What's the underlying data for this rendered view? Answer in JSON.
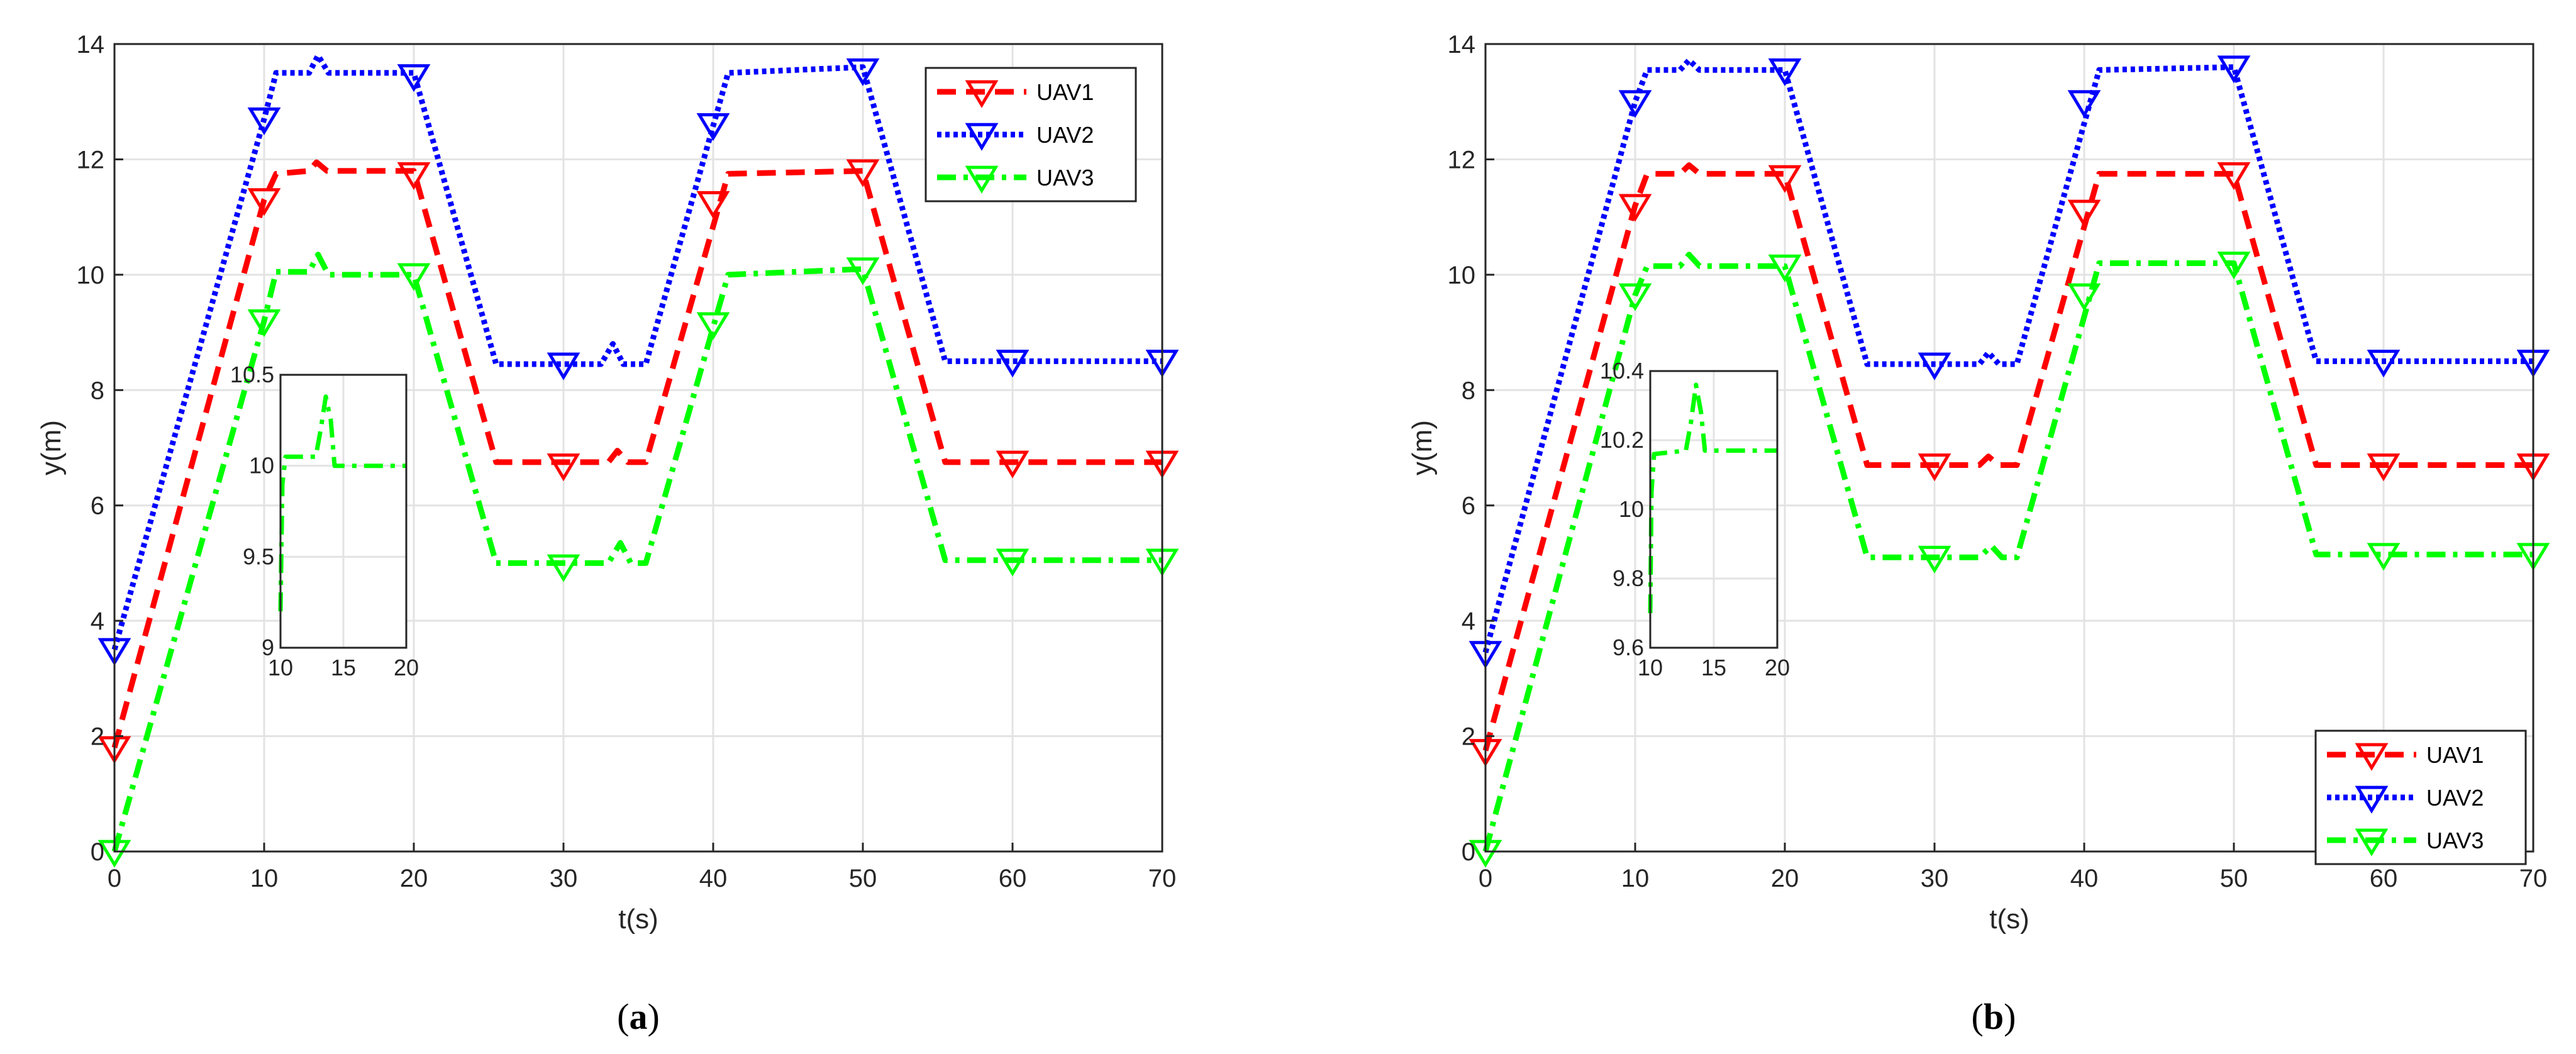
{
  "colors": {
    "uav1": "#FF0000",
    "uav2": "#0000FF",
    "uav3": "#00FF00",
    "grid": "#E3E3E3",
    "axis": "#262626"
  },
  "chart_data": [
    {
      "type": "line",
      "caption": {
        "open": "(",
        "letter": "a",
        "close": ")"
      },
      "xlabel": "t(s)",
      "ylabel": "y(m)",
      "xlim": [
        0,
        70
      ],
      "ylim": [
        0,
        14
      ],
      "xticks": [
        0,
        10,
        20,
        30,
        40,
        50,
        60,
        70
      ],
      "yticks": [
        0,
        2,
        4,
        6,
        8,
        10,
        12,
        14
      ],
      "grid": true,
      "legend_position": "top-right",
      "series": [
        {
          "name": "UAV1",
          "color": "#FF0000",
          "style": "dashed",
          "points": [
            [
              0,
              1.8
            ],
            [
              10,
              11.3
            ],
            [
              10.8,
              11.75
            ],
            [
              13,
              11.8
            ],
            [
              13.5,
              11.95
            ],
            [
              14.2,
              11.8
            ],
            [
              20,
              11.8
            ],
            [
              25.5,
              6.75
            ],
            [
              33,
              6.75
            ],
            [
              33.6,
              6.95
            ],
            [
              34.3,
              6.75
            ],
            [
              35.5,
              6.75
            ],
            [
              41,
              11.75
            ],
            [
              50,
              11.8
            ],
            [
              55.5,
              6.75
            ],
            [
              70,
              6.75
            ]
          ],
          "markers": [
            [
              0,
              1.8
            ],
            [
              10,
              11.3
            ],
            [
              20,
              11.75
            ],
            [
              30,
              6.7
            ],
            [
              40,
              11.25
            ],
            [
              50,
              11.8
            ],
            [
              60,
              6.75
            ],
            [
              70,
              6.75
            ]
          ]
        },
        {
          "name": "UAV2",
          "color": "#0000FF",
          "style": "dotted",
          "points": [
            [
              0,
              3.5
            ],
            [
              10,
              12.7
            ],
            [
              10.8,
              13.5
            ],
            [
              13,
              13.5
            ],
            [
              13.6,
              13.8
            ],
            [
              14.3,
              13.5
            ],
            [
              20,
              13.5
            ],
            [
              25.5,
              8.45
            ],
            [
              32.5,
              8.45
            ],
            [
              33.3,
              8.8
            ],
            [
              34,
              8.45
            ],
            [
              35.5,
              8.45
            ],
            [
              41,
              13.5
            ],
            [
              50,
              13.6
            ],
            [
              55.5,
              8.5
            ],
            [
              70,
              8.5
            ]
          ],
          "markers": [
            [
              0,
              3.5
            ],
            [
              10,
              12.7
            ],
            [
              20,
              13.45
            ],
            [
              30,
              8.45
            ],
            [
              40,
              12.6
            ],
            [
              50,
              13.55
            ],
            [
              60,
              8.5
            ],
            [
              70,
              8.5
            ]
          ]
        },
        {
          "name": "UAV3",
          "color": "#00FF00",
          "style": "dashdot",
          "points": [
            [
              0,
              0
            ],
            [
              10,
              9.2
            ],
            [
              10.8,
              10.05
            ],
            [
              13,
              10.05
            ],
            [
              13.6,
              10.35
            ],
            [
              14.3,
              10.0
            ],
            [
              20,
              10.0
            ],
            [
              25.5,
              5.0
            ],
            [
              33,
              5.0
            ],
            [
              33.8,
              5.35
            ],
            [
              34.5,
              5.0
            ],
            [
              35.5,
              5.0
            ],
            [
              41,
              10.0
            ],
            [
              50,
              10.1
            ],
            [
              55.5,
              5.05
            ],
            [
              70,
              5.05
            ]
          ],
          "markers": [
            [
              0,
              0
            ],
            [
              10,
              9.2
            ],
            [
              20,
              10.0
            ],
            [
              30,
              4.95
            ],
            [
              40,
              9.15
            ],
            [
              50,
              10.1
            ],
            [
              60,
              5.05
            ],
            [
              70,
              5.05
            ]
          ]
        }
      ],
      "inset": {
        "xlim": [
          10,
          20
        ],
        "ylim": [
          9,
          10.5
        ],
        "xticks": [
          10,
          15,
          20
        ],
        "yticks": [
          9,
          9.5,
          10,
          10.5
        ],
        "series_name": "UAV3",
        "points": [
          [
            10,
            9.2
          ],
          [
            10.15,
            9.9
          ],
          [
            10.4,
            10.05
          ],
          [
            12.8,
            10.05
          ],
          [
            13.2,
            10.2
          ],
          [
            13.6,
            10.38
          ],
          [
            14.0,
            10.25
          ],
          [
            14.3,
            10.0
          ],
          [
            20,
            10.0
          ]
        ]
      }
    },
    {
      "type": "line",
      "caption": {
        "open": "(",
        "letter": "b",
        "close": ")"
      },
      "xlabel": "t(s)",
      "ylabel": "y(m)",
      "xlim": [
        0,
        70
      ],
      "ylim": [
        0,
        14
      ],
      "xticks": [
        0,
        10,
        20,
        30,
        40,
        50,
        60,
        70
      ],
      "yticks": [
        0,
        2,
        4,
        6,
        8,
        10,
        12,
        14
      ],
      "grid": true,
      "legend_position": "bottom-right",
      "series": [
        {
          "name": "UAV1",
          "color": "#FF0000",
          "style": "dashed",
          "points": [
            [
              0,
              1.75
            ],
            [
              10,
              11.2
            ],
            [
              10.8,
              11.75
            ],
            [
              13,
              11.75
            ],
            [
              13.6,
              11.9
            ],
            [
              14.3,
              11.75
            ],
            [
              20,
              11.75
            ],
            [
              25.5,
              6.7
            ],
            [
              33,
              6.7
            ],
            [
              33.6,
              6.85
            ],
            [
              34.3,
              6.7
            ],
            [
              35.5,
              6.7
            ],
            [
              41,
              11.75
            ],
            [
              50,
              11.75
            ],
            [
              55.5,
              6.7
            ],
            [
              70,
              6.7
            ]
          ],
          "markers": [
            [
              0,
              1.75
            ],
            [
              10,
              11.2
            ],
            [
              20,
              11.7
            ],
            [
              30,
              6.7
            ],
            [
              40,
              11.1
            ],
            [
              50,
              11.75
            ],
            [
              60,
              6.7
            ],
            [
              70,
              6.7
            ]
          ]
        },
        {
          "name": "UAV2",
          "color": "#0000FF",
          "style": "dotted",
          "points": [
            [
              0,
              3.45
            ],
            [
              10,
              13.0
            ],
            [
              10.8,
              13.55
            ],
            [
              13,
              13.55
            ],
            [
              13.6,
              13.72
            ],
            [
              14.3,
              13.55
            ],
            [
              20,
              13.55
            ],
            [
              25.5,
              8.45
            ],
            [
              33,
              8.45
            ],
            [
              33.6,
              8.65
            ],
            [
              34.3,
              8.45
            ],
            [
              35.5,
              8.45
            ],
            [
              41,
              13.55
            ],
            [
              50,
              13.6
            ],
            [
              55.5,
              8.5
            ],
            [
              70,
              8.5
            ]
          ],
          "markers": [
            [
              0,
              3.45
            ],
            [
              10,
              13.0
            ],
            [
              20,
              13.55
            ],
            [
              30,
              8.45
            ],
            [
              40,
              13.0
            ],
            [
              50,
              13.6
            ],
            [
              60,
              8.5
            ],
            [
              70,
              8.5
            ]
          ]
        },
        {
          "name": "UAV3",
          "color": "#00FF00",
          "style": "dashdot",
          "points": [
            [
              0,
              0
            ],
            [
              10,
              9.65
            ],
            [
              10.8,
              10.15
            ],
            [
              13,
              10.15
            ],
            [
              13.6,
              10.35
            ],
            [
              14.3,
              10.15
            ],
            [
              20,
              10.15
            ],
            [
              25.5,
              5.1
            ],
            [
              33,
              5.1
            ],
            [
              33.8,
              5.3
            ],
            [
              34.5,
              5.1
            ],
            [
              35.5,
              5.1
            ],
            [
              41,
              10.2
            ],
            [
              50,
              10.2
            ],
            [
              55.5,
              5.15
            ],
            [
              70,
              5.15
            ]
          ],
          "markers": [
            [
              0,
              0
            ],
            [
              10,
              9.65
            ],
            [
              20,
              10.15
            ],
            [
              30,
              5.1
            ],
            [
              40,
              9.65
            ],
            [
              50,
              10.2
            ],
            [
              60,
              5.15
            ],
            [
              70,
              5.15
            ]
          ]
        }
      ],
      "inset": {
        "xlim": [
          10,
          20
        ],
        "ylim": [
          9.6,
          10.4
        ],
        "xticks": [
          10,
          15,
          20
        ],
        "yticks": [
          9.6,
          9.8,
          10,
          10.2,
          10.4
        ],
        "tick_labels_y": [
          "9.6",
          "9.8",
          "10",
          "10.2",
          "10.4"
        ],
        "series_name": "UAV3",
        "points": [
          [
            10,
            9.7
          ],
          [
            10.1,
            10.05
          ],
          [
            10.3,
            10.16
          ],
          [
            12.8,
            10.17
          ],
          [
            13.2,
            10.25
          ],
          [
            13.6,
            10.36
          ],
          [
            14.0,
            10.28
          ],
          [
            14.3,
            10.17
          ],
          [
            20,
            10.17
          ]
        ]
      }
    }
  ]
}
